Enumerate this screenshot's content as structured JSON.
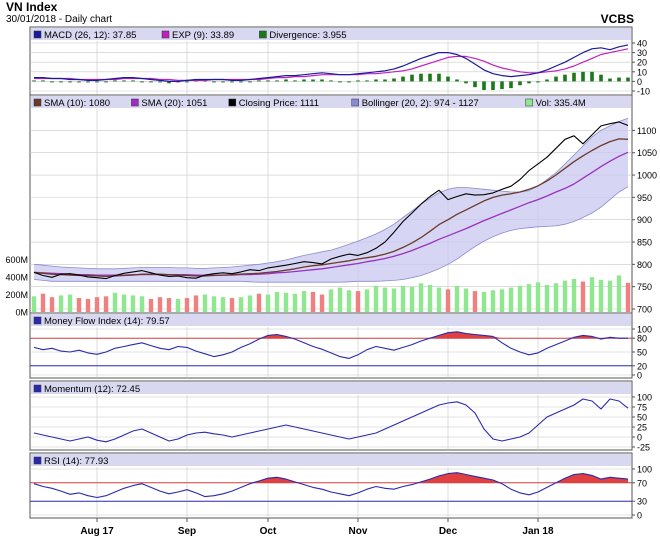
{
  "header": {
    "title": "VN Index",
    "subtitle": "30/01/2018 - Daily chart",
    "source": "VCBS"
  },
  "colors": {
    "background": "#ffffff",
    "panel_bg": "#ffffff",
    "legend_bg": "#d8d8f0",
    "grid": "#c8c8c8",
    "macd": "#1a1a9c",
    "signal": "#c020c0",
    "divergence": "#1a7a1a",
    "sma10": "#6b3a2a",
    "sma20": "#9b30c0",
    "close": "#000000",
    "bollinger_fill": "#c8c8f0",
    "bollinger_line": "#8a8ad0",
    "vol_up": "#8fe88f",
    "vol_down": "#f08080",
    "indicator_line": "#2a2ab0",
    "overbought_fill": "#e04040",
    "threshold_line": "#d04040",
    "oversold_line": "#2a2ab0"
  },
  "chart_data": [
    {
      "id": "macd",
      "type": "line",
      "legend": [
        {
          "label": "MACD (26, 12): 37.85",
          "color": "#1a1a9c"
        },
        {
          "label": "EXP (9): 33.89",
          "color": "#c020c0"
        },
        {
          "label": "Divergence: 3.955",
          "color": "#1a7a1a"
        }
      ],
      "y_ticks": [
        "40",
        "30",
        "20",
        "10",
        "0",
        "-10"
      ],
      "ylim": [
        -10,
        40
      ],
      "series": [
        {
          "name": "MACD (26, 12)",
          "values": [
            4,
            4,
            3,
            3,
            2,
            2,
            1,
            1,
            2,
            3,
            4,
            4,
            3,
            2,
            1,
            0,
            0,
            1,
            2,
            2,
            2,
            2,
            1,
            1,
            2,
            3,
            4,
            5,
            6,
            6,
            7,
            8,
            9,
            8,
            7,
            7,
            8,
            9,
            10,
            11,
            13,
            16,
            20,
            24,
            27,
            30,
            30,
            28,
            24,
            18,
            12,
            8,
            6,
            5,
            6,
            7,
            9,
            12,
            16,
            20,
            25,
            30,
            34,
            35,
            33,
            36,
            38
          ]
        },
        {
          "name": "EXP (9)",
          "values": [
            3,
            3,
            3,
            3,
            3,
            2,
            2,
            2,
            2,
            2,
            3,
            3,
            3,
            3,
            2,
            2,
            1,
            1,
            1,
            1,
            2,
            2,
            2,
            2,
            2,
            2,
            3,
            4,
            4,
            5,
            5,
            6,
            7,
            7,
            7,
            7,
            7,
            8,
            8,
            9,
            10,
            11,
            13,
            16,
            19,
            22,
            25,
            26,
            26,
            24,
            21,
            17,
            14,
            12,
            10,
            9,
            9,
            10,
            11,
            13,
            16,
            20,
            24,
            28,
            30,
            32,
            34
          ]
        }
      ],
      "divergence": [
        1,
        1,
        0,
        0,
        -1,
        0,
        -1,
        -1,
        0,
        1,
        1,
        1,
        0,
        -1,
        -1,
        -2,
        -1,
        0,
        1,
        1,
        0,
        0,
        -1,
        -1,
        0,
        1,
        1,
        1,
        2,
        1,
        2,
        2,
        2,
        1,
        0,
        0,
        1,
        1,
        2,
        2,
        3,
        5,
        7,
        8,
        8,
        8,
        5,
        2,
        -2,
        -6,
        -9,
        -9,
        -8,
        -7,
        -4,
        -2,
        0,
        2,
        5,
        7,
        9,
        10,
        10,
        7,
        3,
        4,
        4
      ]
    },
    {
      "id": "price",
      "type": "line",
      "legend": [
        {
          "label": "SMA (10): 1080",
          "color": "#6b3a2a"
        },
        {
          "label": "SMA (20): 1051",
          "color": "#9b30c0"
        },
        {
          "label": "Closing Price: 1111",
          "color": "#000000"
        },
        {
          "label": "Bollinger (20, 2): 974 - 1127",
          "color": "#8a8ad0"
        },
        {
          "label": "Vol: 335.4M",
          "color": "#8fe88f"
        }
      ],
      "y_ticks": [
        "1100",
        "1050",
        "1000",
        "950",
        "900",
        "850",
        "800",
        "750",
        "700"
      ],
      "vol_ticks": [
        "600M",
        "400M",
        "200M",
        "0M"
      ],
      "ylim": [
        700,
        1130
      ],
      "close": [
        782,
        775,
        771,
        778,
        779,
        776,
        772,
        770,
        768,
        775,
        780,
        783,
        786,
        781,
        776,
        773,
        774,
        770,
        769,
        776,
        779,
        781,
        779,
        783,
        788,
        786,
        792,
        795,
        798,
        802,
        806,
        804,
        801,
        812,
        818,
        823,
        820,
        826,
        836,
        850,
        872,
        896,
        915,
        935,
        952,
        966,
        945,
        952,
        958,
        955,
        956,
        960,
        968,
        975,
        990,
        1010,
        1025,
        1040,
        1060,
        1080,
        1088,
        1070,
        1090,
        1110,
        1115,
        1119,
        1111
      ],
      "sma10": [
        782,
        780,
        778,
        777,
        776,
        775,
        775,
        774,
        773,
        774,
        775,
        776,
        778,
        778,
        778,
        777,
        776,
        775,
        774,
        774,
        775,
        776,
        777,
        778,
        779,
        780,
        782,
        784,
        787,
        790,
        794,
        797,
        799,
        802,
        805,
        808,
        812,
        815,
        818,
        823,
        829,
        838,
        848,
        860,
        874,
        889,
        900,
        912,
        922,
        932,
        942,
        950,
        955,
        958,
        962,
        968,
        976,
        987,
        1000,
        1015,
        1030,
        1043,
        1055,
        1066,
        1075,
        1081,
        1080
      ],
      "sma20": [
        782,
        781,
        780,
        779,
        778,
        777,
        777,
        776,
        776,
        776,
        776,
        777,
        777,
        777,
        777,
        777,
        777,
        777,
        776,
        776,
        776,
        776,
        776,
        777,
        777,
        778,
        779,
        781,
        782,
        784,
        786,
        788,
        790,
        793,
        796,
        799,
        802,
        806,
        809,
        813,
        818,
        824,
        831,
        839,
        847,
        856,
        864,
        872,
        880,
        889,
        898,
        906,
        914,
        922,
        930,
        938,
        945,
        953,
        962,
        970,
        980,
        993,
        1006,
        1019,
        1031,
        1042,
        1051
      ],
      "bb_upper": [
        800,
        798,
        796,
        794,
        793,
        792,
        791,
        790,
        790,
        790,
        791,
        792,
        793,
        793,
        793,
        793,
        792,
        792,
        791,
        791,
        792,
        793,
        794,
        796,
        798,
        800,
        803,
        806,
        810,
        815,
        820,
        824,
        828,
        832,
        838,
        845,
        852,
        860,
        868,
        878,
        890,
        905,
        920,
        935,
        948,
        960,
        968,
        972,
        972,
        970,
        968,
        966,
        964,
        962,
        962,
        965,
        975,
        990,
        1005,
        1025,
        1045,
        1065,
        1085,
        1100,
        1110,
        1120,
        1127
      ],
      "bb_lower": [
        766,
        764,
        762,
        762,
        762,
        762,
        762,
        762,
        762,
        762,
        762,
        762,
        762,
        762,
        762,
        762,
        762,
        762,
        762,
        762,
        762,
        762,
        762,
        762,
        761,
        760,
        760,
        760,
        760,
        760,
        760,
        760,
        760,
        760,
        760,
        761,
        762,
        762,
        762,
        763,
        764,
        766,
        770,
        775,
        782,
        790,
        800,
        812,
        826,
        840,
        852,
        862,
        870,
        876,
        880,
        882,
        884,
        885,
        886,
        890,
        896,
        905,
        915,
        928,
        945,
        962,
        974
      ],
      "volume": [
        180,
        210,
        170,
        190,
        200,
        160,
        150,
        170,
        180,
        220,
        200,
        190,
        180,
        150,
        170,
        160,
        150,
        160,
        190,
        200,
        180,
        170,
        160,
        170,
        190,
        210,
        200,
        230,
        220,
        210,
        240,
        230,
        200,
        260,
        280,
        250,
        240,
        260,
        300,
        280,
        270,
        300,
        290,
        330,
        310,
        280,
        260,
        300,
        270,
        240,
        230,
        250,
        260,
        280,
        300,
        320,
        340,
        310,
        330,
        360,
        380,
        350,
        400,
        370,
        360,
        420,
        335
      ],
      "volume_up": [
        true,
        false,
        false,
        true,
        true,
        false,
        false,
        false,
        false,
        true,
        true,
        true,
        true,
        false,
        false,
        false,
        true,
        false,
        false,
        true,
        true,
        true,
        false,
        true,
        true,
        false,
        true,
        true,
        true,
        true,
        true,
        false,
        false,
        true,
        true,
        true,
        false,
        true,
        true,
        true,
        true,
        true,
        true,
        true,
        true,
        true,
        false,
        true,
        true,
        false,
        true,
        true,
        true,
        true,
        true,
        true,
        true,
        true,
        true,
        true,
        true,
        false,
        true,
        true,
        true,
        true,
        false
      ]
    },
    {
      "id": "mfi",
      "type": "line",
      "legend": [
        {
          "label": "Money Flow Index (14): 79.57",
          "color": "#2a2ab0"
        }
      ],
      "y_ticks": [
        "100",
        "80",
        "50",
        "20",
        "0"
      ],
      "ylim": [
        0,
        100
      ],
      "thresholds": [
        80,
        20
      ],
      "values": [
        60,
        55,
        58,
        52,
        50,
        54,
        48,
        45,
        50,
        58,
        62,
        66,
        70,
        64,
        58,
        55,
        62,
        60,
        52,
        46,
        40,
        44,
        50,
        60,
        68,
        78,
        86,
        88,
        84,
        78,
        70,
        62,
        56,
        48,
        40,
        36,
        44,
        55,
        62,
        58,
        54,
        60,
        66,
        74,
        80,
        86,
        92,
        94,
        90,
        88,
        86,
        84,
        70,
        58,
        50,
        44,
        48,
        58,
        66,
        74,
        82,
        86,
        84,
        78,
        82,
        80,
        80
      ]
    },
    {
      "id": "momentum",
      "type": "line",
      "legend": [
        {
          "label": "Momentum (12): 72.45",
          "color": "#2a2ab0"
        }
      ],
      "y_ticks": [
        "100",
        "75",
        "50",
        "25",
        "0",
        "-25"
      ],
      "ylim": [
        -25,
        100
      ],
      "values": [
        10,
        5,
        0,
        -5,
        -10,
        -5,
        0,
        -8,
        -12,
        -5,
        5,
        15,
        20,
        10,
        0,
        -10,
        -5,
        5,
        10,
        12,
        8,
        5,
        0,
        5,
        10,
        15,
        20,
        25,
        30,
        25,
        20,
        15,
        10,
        5,
        0,
        -5,
        0,
        5,
        10,
        20,
        30,
        40,
        50,
        60,
        70,
        80,
        85,
        88,
        80,
        60,
        20,
        -5,
        -10,
        -5,
        0,
        10,
        30,
        50,
        60,
        70,
        80,
        95,
        90,
        70,
        95,
        90,
        72
      ]
    },
    {
      "id": "rsi",
      "type": "line",
      "legend": [
        {
          "label": "RSI (14): 77.93",
          "color": "#2a2ab0"
        }
      ],
      "y_ticks": [
        "100",
        "70",
        "30",
        "0"
      ],
      "ylim": [
        0,
        100
      ],
      "thresholds": [
        70,
        30
      ],
      "values": [
        68,
        62,
        58,
        52,
        45,
        48,
        42,
        38,
        42,
        50,
        58,
        64,
        68,
        60,
        52,
        46,
        50,
        55,
        48,
        40,
        42,
        46,
        52,
        60,
        68,
        74,
        80,
        82,
        78,
        72,
        66,
        60,
        56,
        50,
        46,
        42,
        48,
        56,
        62,
        58,
        56,
        62,
        66,
        72,
        78,
        85,
        90,
        92,
        88,
        84,
        80,
        76,
        68,
        56,
        48,
        44,
        50,
        60,
        70,
        80,
        88,
        90,
        86,
        78,
        82,
        80,
        78
      ]
    }
  ],
  "x_axis": {
    "labels": [
      "Aug 17",
      "Sep",
      "Oct",
      "Nov",
      "Dec",
      "Jan 18"
    ],
    "label_index": [
      7,
      17,
      26,
      36,
      46,
      56
    ]
  }
}
